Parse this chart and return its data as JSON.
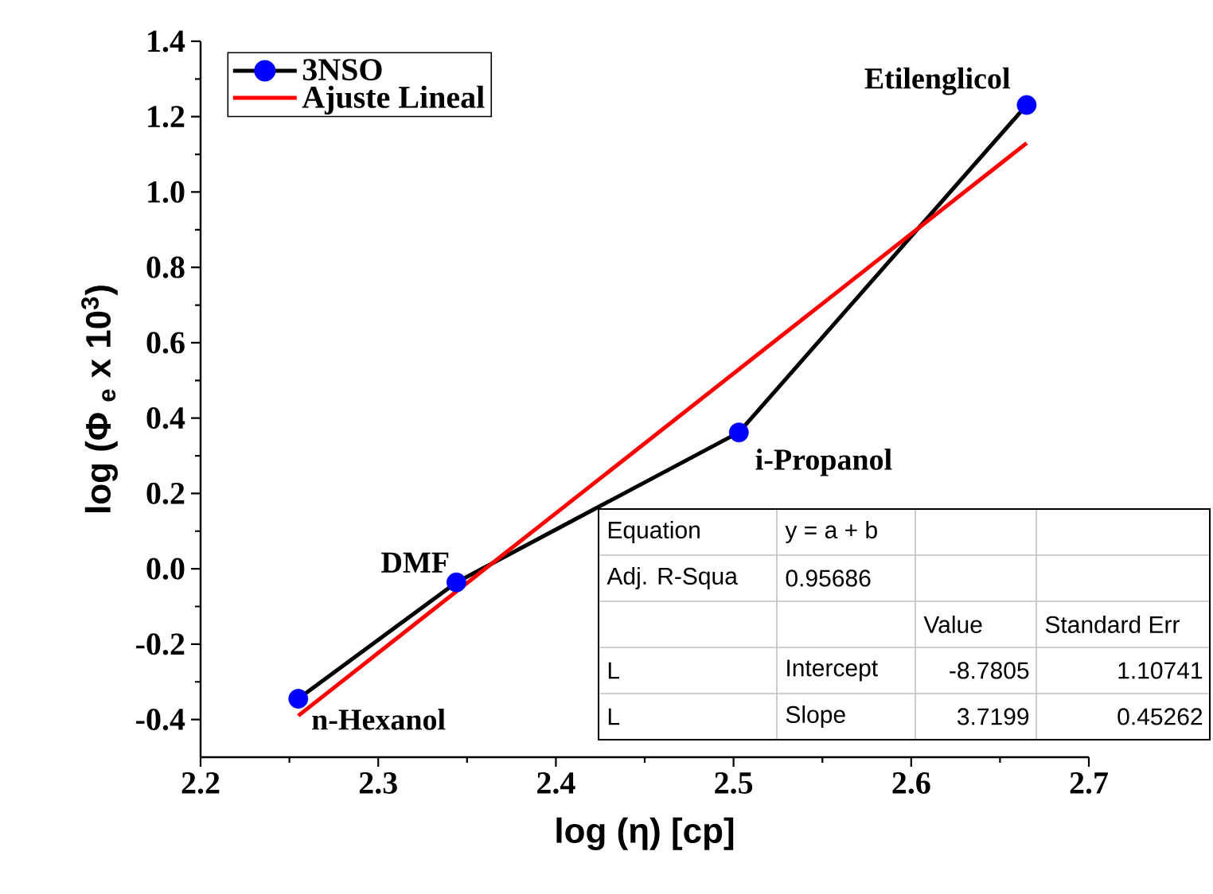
{
  "chart_data": {
    "type": "line",
    "xlabel": "log (η) [cp]",
    "ylabel": "log (Φ $_{e}$ x 10$^{3}$)",
    "xlim": [
      2.2,
      2.7
    ],
    "ylim": [
      -0.5,
      1.4
    ],
    "xticks": [
      2.2,
      2.3,
      2.4,
      2.5,
      2.6,
      2.7
    ],
    "yticks": [
      -0.4,
      -0.2,
      {
        "value": 0,
        "label": "0.0"
      },
      0.2,
      0.4,
      0.6,
      0.8,
      {
        "value": 1,
        "label": "1.0"
      },
      1.2,
      1.4
    ],
    "legend": "top left",
    "series": [
      {
        "name": "3NSO",
        "marker": "circle",
        "color": "#000000",
        "colors": [
          "#0000ff",
          "#0000ff",
          "#0000ff",
          "#0000ff"
        ],
        "x": [
          2.255,
          2.344,
          2.503,
          2.665
        ],
        "values": [
          -0.345,
          -0.036,
          0.362,
          1.231
        ]
      },
      {
        "name": "Ajuste Lineal",
        "marker": "none",
        "color": "#ff0000",
        "x": [
          2.255,
          2.665
        ],
        "values": [
          -0.39,
          1.13
        ]
      }
    ],
    "annotations": [
      {
        "text": "n-Hexanol",
        "x": 2.255,
        "y": -0.345
      },
      {
        "text": "DMF",
        "x": 2.344,
        "y": -0.036
      },
      {
        "text": "i-Propanol",
        "x": 2.503,
        "y": 0.362
      },
      {
        "text": "Etilenglicol",
        "x": 2.665,
        "y": 1.231
      },
      "Equation",
      "y = a + b",
      "Adj. R-Squa",
      "0.95686",
      "Value",
      "Standard Err",
      "L",
      "Intercept",
      "-8.7805",
      "1.10741",
      "L",
      "Slope",
      "3.7199",
      "0.45262"
    ]
  }
}
